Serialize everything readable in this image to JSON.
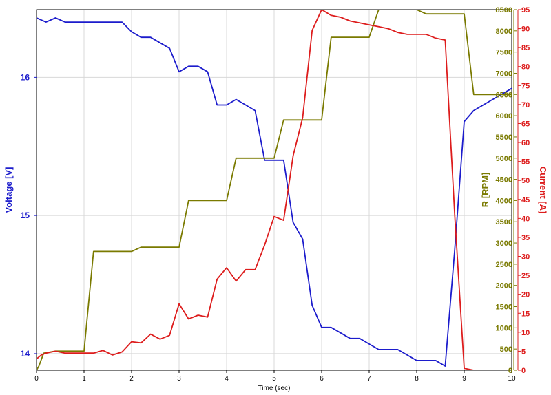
{
  "chart_data": {
    "type": "line",
    "xlabel": "Time (sec)",
    "xlim": [
      0,
      10
    ],
    "x_ticks": [
      "0",
      "1",
      "2",
      "3",
      "4",
      "5",
      "6",
      "7",
      "8",
      "9",
      "10"
    ],
    "axes": {
      "voltage": {
        "label": "Voltage [V]",
        "range": [
          13.88,
          16.49
        ],
        "ticks": [
          "14",
          "15",
          "16"
        ],
        "color": "#1c1ccc"
      },
      "rpm": {
        "label": "R [RPM]",
        "range": [
          0,
          8500
        ],
        "ticks": [
          "0",
          "500",
          "1000",
          "1500",
          "2000",
          "2500",
          "3000",
          "3500",
          "4000",
          "4500",
          "5000",
          "5500",
          "6000",
          "6500",
          "7000",
          "7500",
          "8000",
          "8500"
        ],
        "color": "#7a7a00"
      },
      "current": {
        "label": "Current [A]",
        "range": [
          0,
          95
        ],
        "ticks": [
          "0",
          "5",
          "10",
          "15",
          "20",
          "25",
          "30",
          "35",
          "40",
          "45",
          "50",
          "55",
          "60",
          "65",
          "70",
          "75",
          "80",
          "85",
          "90",
          "95"
        ],
        "color": "#dd1c1c"
      }
    },
    "grid": true,
    "series": [
      {
        "axis": "voltage",
        "color": "#1c1ccc",
        "x": [
          0,
          0.2,
          0.4,
          0.6,
          0.8,
          1.0,
          1.2,
          1.4,
          1.6,
          1.8,
          2.0,
          2.2,
          2.4,
          2.6,
          2.8,
          3.0,
          3.2,
          3.4,
          3.6,
          3.8,
          4.0,
          4.2,
          4.4,
          4.6,
          4.8,
          5.0,
          5.2,
          5.4,
          5.6,
          5.8,
          6.0,
          6.2,
          6.4,
          6.6,
          6.8,
          7.0,
          7.2,
          7.4,
          7.6,
          7.8,
          8.0,
          8.2,
          8.4,
          8.6,
          8.8,
          9.0,
          9.2,
          9.4,
          9.6,
          9.8,
          10.0
        ],
        "values": [
          16.43,
          16.4,
          16.43,
          16.4,
          16.4,
          16.4,
          16.4,
          16.4,
          16.4,
          16.4,
          16.33,
          16.29,
          16.29,
          16.25,
          16.21,
          16.04,
          16.08,
          16.08,
          16.04,
          15.8,
          15.8,
          15.84,
          15.8,
          15.76,
          15.4,
          15.4,
          15.4,
          14.95,
          14.83,
          14.35,
          14.19,
          14.19,
          14.15,
          14.11,
          14.11,
          14.07,
          14.03,
          14.03,
          14.03,
          13.99,
          13.95,
          13.95,
          13.95,
          13.91,
          14.75,
          15.68,
          15.76,
          15.8,
          15.84,
          15.88,
          15.92
        ]
      },
      {
        "axis": "rpm",
        "color": "#7a7a00",
        "x": [
          0,
          0.05,
          0.15,
          0.4,
          0.6,
          0.8,
          1.0,
          1.2,
          1.4,
          1.6,
          1.8,
          2.0,
          2.2,
          2.4,
          2.6,
          2.8,
          3.0,
          3.2,
          3.4,
          3.6,
          3.8,
          4.0,
          4.2,
          4.4,
          4.6,
          4.8,
          5.0,
          5.2,
          5.4,
          5.6,
          5.8,
          6.0,
          6.2,
          6.4,
          6.6,
          6.8,
          7.0,
          7.2,
          7.4,
          7.6,
          7.8,
          8.0,
          8.2,
          8.4,
          8.6,
          8.8,
          9.0,
          9.2,
          9.4,
          9.6,
          9.8,
          10.0
        ],
        "values": [
          0,
          100,
          400,
          450,
          450,
          450,
          450,
          2800,
          2800,
          2800,
          2800,
          2800,
          2900,
          2900,
          2900,
          2900,
          2900,
          4000,
          4000,
          4000,
          4000,
          4000,
          5000,
          5000,
          5000,
          5000,
          5000,
          5900,
          5900,
          5900,
          5900,
          5900,
          7850,
          7850,
          7850,
          7850,
          7850,
          8500,
          8500,
          8500,
          8500,
          8500,
          8400,
          8400,
          8400,
          8400,
          8400,
          6500,
          6500,
          6500,
          6500,
          6500
        ]
      },
      {
        "axis": "current",
        "color": "#dd1c1c",
        "x": [
          0,
          0.1,
          0.2,
          0.4,
          0.6,
          0.8,
          1.0,
          1.2,
          1.4,
          1.6,
          1.8,
          2.0,
          2.2,
          2.4,
          2.6,
          2.8,
          3.0,
          3.2,
          3.4,
          3.6,
          3.8,
          4.0,
          4.2,
          4.4,
          4.6,
          4.8,
          5.0,
          5.2,
          5.4,
          5.6,
          5.8,
          6.0,
          6.2,
          6.4,
          6.6,
          6.8,
          7.0,
          7.2,
          7.4,
          7.6,
          7.8,
          8.0,
          8.2,
          8.4,
          8.6,
          8.8,
          9.0,
          9.2
        ],
        "values": [
          3,
          4,
          4.5,
          5,
          4.5,
          4.5,
          4.5,
          4.5,
          5.2,
          4,
          4.8,
          7.5,
          7.2,
          9.5,
          8.2,
          9.2,
          17.5,
          13.5,
          14.5,
          14,
          24,
          27,
          23.5,
          26.5,
          26.5,
          33,
          40.5,
          39.5,
          56.5,
          66.5,
          89.5,
          95,
          93.5,
          93,
          92,
          91.5,
          91,
          90.5,
          90,
          89,
          88.5,
          88.5,
          88.5,
          87.5,
          87,
          41,
          0.5,
          0
        ]
      }
    ]
  }
}
